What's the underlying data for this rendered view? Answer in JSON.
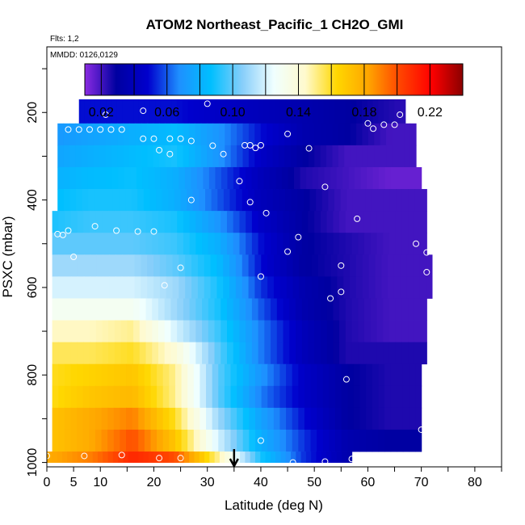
{
  "chart_data": {
    "type": "heatmap",
    "title": "ATOM2 Northeast_Pacific_1 CH2O_GMI",
    "flights_label": "Flts: 1,2",
    "dates_label": "MMDD: 0126,0129",
    "xlabel": "Latitude (deg N)",
    "ylabel": "PSXC (mbar)",
    "xlim": [
      0,
      85
    ],
    "ylim": [
      1010,
      50
    ],
    "y_reversed": true,
    "x_ticks": [
      0,
      5,
      10,
      20,
      30,
      40,
      50,
      60,
      70,
      80
    ],
    "y_ticks": [
      200,
      400,
      600,
      800,
      1000
    ],
    "colorbar": {
      "range": [
        0.01,
        0.24
      ],
      "tick_values": [
        0.02,
        0.06,
        0.1,
        0.14,
        0.18,
        0.22
      ],
      "tick_labels": [
        "0.02",
        "0.06",
        "0.10",
        "0.14",
        "0.18",
        "0.22"
      ],
      "colors": [
        "#8a2be2",
        "#0000a0",
        "#0000cd",
        "#1e90ff",
        "#00bfff",
        "#87cefa",
        "#f0ffff",
        "#fffacd",
        "#ffd700",
        "#ffa500",
        "#ff4500",
        "#ff0000",
        "#8b0000"
      ]
    },
    "marker_latitude": 35,
    "rows": [
      {
        "p": 200,
        "min": 6,
        "max": 67,
        "v": [
          0.05,
          0.05,
          0.05,
          0.05,
          0.045,
          0.04,
          0.035,
          0.03,
          0.025,
          0.02
        ]
      },
      {
        "p": 250,
        "min": 2,
        "max": 69,
        "v": [
          0.07,
          0.075,
          0.08,
          0.085,
          0.07,
          0.05,
          0.035,
          0.03,
          0.02,
          0.02
        ]
      },
      {
        "p": 300,
        "min": 2,
        "max": 69,
        "v": [
          0.075,
          0.08,
          0.085,
          0.09,
          0.07,
          0.045,
          0.03,
          0.02,
          0.02,
          0.02
        ]
      },
      {
        "p": 350,
        "min": 2,
        "max": 70,
        "v": [
          0.08,
          0.085,
          0.088,
          0.08,
          0.06,
          0.04,
          0.025,
          0.02,
          0.015,
          0.015
        ]
      },
      {
        "p": 400,
        "min": 2,
        "max": 71,
        "v": [
          0.085,
          0.09,
          0.09,
          0.08,
          0.06,
          0.04,
          0.03,
          0.02,
          0.02,
          0.02
        ]
      },
      {
        "p": 450,
        "min": 1,
        "max": 71,
        "v": [
          0.09,
          0.095,
          0.095,
          0.09,
          0.07,
          0.045,
          0.03,
          0.02,
          0.02,
          0.02
        ]
      },
      {
        "p": 500,
        "min": 1,
        "max": 71,
        "v": [
          0.1,
          0.1,
          0.1,
          0.095,
          0.08,
          0.05,
          0.03,
          0.025,
          0.02,
          0.02
        ]
      },
      {
        "p": 550,
        "min": 1,
        "max": 72,
        "v": [
          0.11,
          0.11,
          0.11,
          0.1,
          0.085,
          0.05,
          0.03,
          0.025,
          0.02,
          0.02
        ]
      },
      {
        "p": 600,
        "min": 1,
        "max": 72,
        "v": [
          0.12,
          0.12,
          0.12,
          0.11,
          0.09,
          0.055,
          0.035,
          0.025,
          0.02,
          0.02
        ]
      },
      {
        "p": 650,
        "min": 1,
        "max": 71,
        "v": [
          0.13,
          0.13,
          0.13,
          0.11,
          0.09,
          0.06,
          0.035,
          0.025,
          0.02,
          0.02
        ]
      },
      {
        "p": 700,
        "min": 1,
        "max": 71,
        "v": [
          0.145,
          0.145,
          0.15,
          0.12,
          0.095,
          0.065,
          0.04,
          0.025,
          0.02,
          0.02
        ]
      },
      {
        "p": 750,
        "min": 1,
        "max": 71,
        "v": [
          0.155,
          0.155,
          0.16,
          0.14,
          0.1,
          0.065,
          0.04,
          0.025,
          0.025,
          0.025
        ]
      },
      {
        "p": 800,
        "min": 1,
        "max": 70,
        "v": [
          0.16,
          0.165,
          0.17,
          0.15,
          0.1,
          0.07,
          0.045,
          0.03,
          0.025,
          0.025
        ]
      },
      {
        "p": 850,
        "min": 1,
        "max": 70,
        "v": [
          0.16,
          0.17,
          0.175,
          0.15,
          0.1,
          0.065,
          0.045,
          0.03,
          0.025,
          0.025
        ]
      },
      {
        "p": 900,
        "min": 1,
        "max": 70,
        "v": [
          0.17,
          0.18,
          0.19,
          0.16,
          0.11,
          0.075,
          0.05,
          0.03,
          0.025,
          0.025
        ]
      },
      {
        "p": 950,
        "min": 1,
        "max": 70,
        "v": [
          0.17,
          0.18,
          0.2,
          0.17,
          0.12,
          0.08,
          0.055,
          0.035,
          0.03,
          0.03
        ]
      },
      {
        "p": 1000,
        "min": 0,
        "max": 57,
        "v": [
          0.18,
          0.19,
          0.21,
          0.2,
          0.15,
          0.09,
          0.055,
          0.035,
          0.03,
          0.03
        ]
      }
    ],
    "points": [
      [
        11,
        205
      ],
      [
        18,
        196
      ],
      [
        30,
        180
      ],
      [
        66,
        205
      ],
      [
        60,
        225
      ],
      [
        63,
        228
      ],
      [
        65,
        228
      ],
      [
        61,
        237
      ],
      [
        4,
        239
      ],
      [
        6,
        239
      ],
      [
        8,
        239
      ],
      [
        10,
        239
      ],
      [
        12,
        239
      ],
      [
        14,
        239
      ],
      [
        45,
        249
      ],
      [
        18,
        260
      ],
      [
        20,
        260
      ],
      [
        23,
        260
      ],
      [
        25,
        260
      ],
      [
        27,
        265
      ],
      [
        21,
        286
      ],
      [
        31,
        276
      ],
      [
        37,
        275
      ],
      [
        38,
        275
      ],
      [
        40,
        275
      ],
      [
        39,
        281
      ],
      [
        49,
        282
      ],
      [
        33,
        295
      ],
      [
        23,
        295
      ],
      [
        36,
        357
      ],
      [
        52,
        370
      ],
      [
        27,
        400
      ],
      [
        38,
        405
      ],
      [
        41,
        430
      ],
      [
        58,
        443
      ],
      [
        4,
        470
      ],
      [
        9,
        460
      ],
      [
        13,
        470
      ],
      [
        17,
        472
      ],
      [
        20,
        472
      ],
      [
        2,
        478
      ],
      [
        3,
        480
      ],
      [
        47,
        485
      ],
      [
        69,
        500
      ],
      [
        45,
        518
      ],
      [
        71,
        520
      ],
      [
        5,
        530
      ],
      [
        25,
        555
      ],
      [
        55,
        550
      ],
      [
        71,
        565
      ],
      [
        40,
        575
      ],
      [
        22,
        595
      ],
      [
        55,
        610
      ],
      [
        53,
        625
      ],
      [
        56,
        810
      ],
      [
        70,
        925
      ],
      [
        40,
        950
      ],
      [
        0,
        985
      ],
      [
        7,
        985
      ],
      [
        14,
        983
      ],
      [
        21,
        990
      ],
      [
        25,
        990
      ],
      [
        46,
        1000
      ],
      [
        52,
        998
      ],
      [
        57,
        992
      ]
    ]
  }
}
